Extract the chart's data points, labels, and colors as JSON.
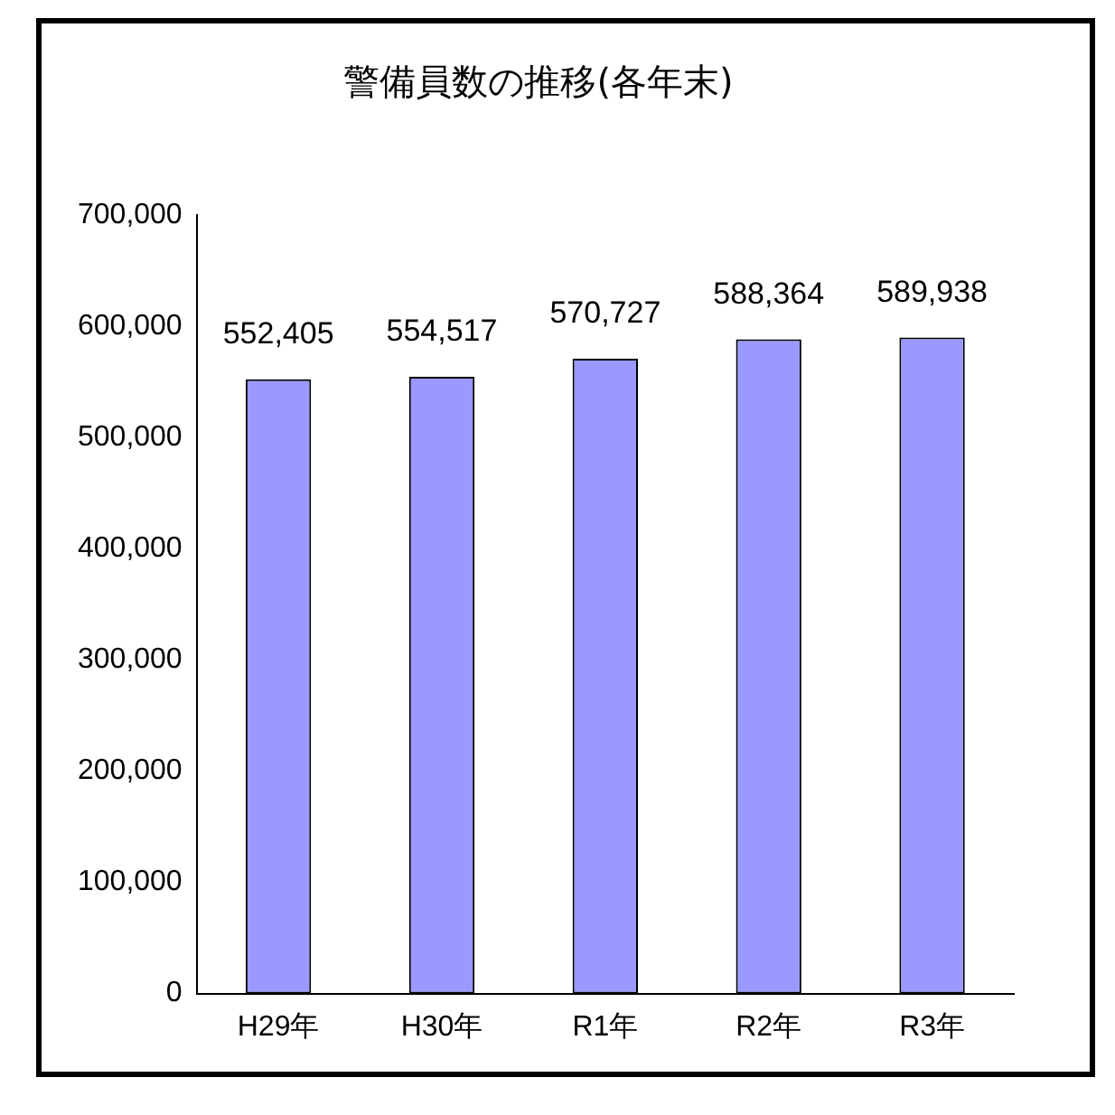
{
  "chart_data": {
    "type": "bar",
    "title": "警備員数の推移(各年末)",
    "categories": [
      "H29年",
      "H30年",
      "R1年",
      "R2年",
      "R3年"
    ],
    "values": [
      552405,
      554517,
      570727,
      588364,
      589938
    ],
    "value_labels": [
      "552,405",
      "554,517",
      "570,727",
      "588,364",
      "589,938"
    ],
    "color": "#9999ff",
    "ylim": [
      0,
      700000
    ],
    "yticks": [
      0,
      {
        "value": 100000,
        "label": "100,000"
      },
      {
        "value": 200000,
        "label": "200,000"
      },
      {
        "value": 300000,
        "label": "300,000"
      },
      {
        "value": 400000,
        "label": "400,000"
      },
      {
        "value": 500000,
        "label": "500,000"
      },
      {
        "value": 600000,
        "label": "600,000"
      },
      {
        "value": 700000,
        "label": "700,000"
      }
    ],
    "grid": false,
    "legend": false
  }
}
